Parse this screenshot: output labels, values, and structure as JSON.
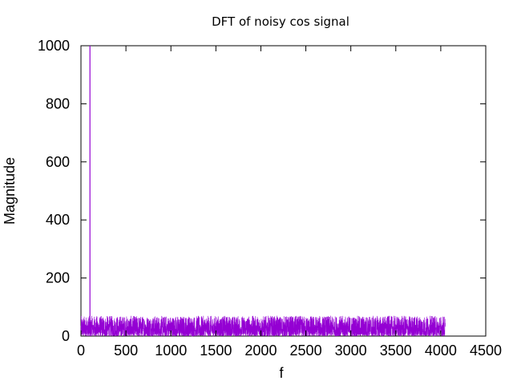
{
  "chart_data": {
    "type": "line",
    "title": "DFT of noisy cos signal",
    "xlabel": "f",
    "ylabel": "Magnitude",
    "xlim": [
      0,
      4500
    ],
    "ylim": [
      0,
      1000
    ],
    "xticks": [
      0,
      500,
      1000,
      1500,
      2000,
      2500,
      3000,
      3500,
      4000,
      4500
    ],
    "yticks": [
      0,
      200,
      400,
      600,
      800,
      1000
    ],
    "grid": false,
    "series": [
      {
        "color": "#9400d3",
        "x_range": [
          0,
          4050
        ],
        "noise_floor_range": [
          0,
          70
        ],
        "peaks": [
          {
            "x": 100,
            "y": 1000
          }
        ]
      }
    ]
  }
}
